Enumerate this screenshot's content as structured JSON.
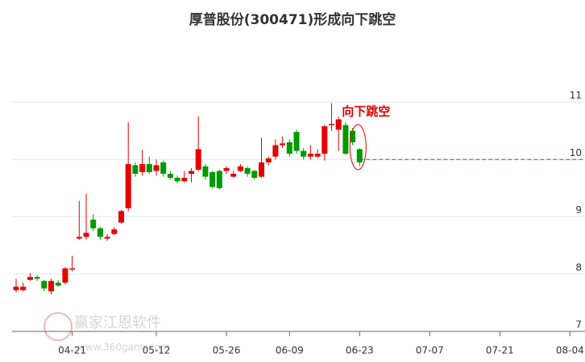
{
  "chart_data": {
    "type": "candlestick",
    "title": "厚普股份(300471)形成向下跳空",
    "annotation": "向下跳空",
    "watermark": [
      "赢家江恩软件",
      "www.360gann.com"
    ],
    "categories": [
      null,
      null,
      null,
      null,
      null,
      null,
      null,
      null,
      "04-21",
      null,
      null,
      null,
      null,
      null,
      null,
      null,
      null,
      null,
      null,
      null,
      "05-12",
      null,
      null,
      null,
      null,
      null,
      null,
      null,
      null,
      null,
      "05-26",
      null,
      null,
      null,
      null,
      null,
      null,
      null,
      null,
      "06-09",
      null,
      null,
      null,
      null,
      null,
      null,
      null,
      null,
      null,
      "06-23",
      null,
      null,
      null,
      null,
      null,
      null,
      null,
      null,
      null,
      "07-07",
      null,
      null,
      null,
      null,
      null,
      null,
      null,
      null,
      null,
      "07-21",
      null,
      null,
      null,
      null,
      null,
      null,
      null,
      null,
      null,
      "08-04"
    ],
    "open": [
      7.72,
      7.72,
      7.9,
      7.95,
      7.88,
      7.7,
      7.85,
      7.85,
      8.08,
      8.62,
      8.65,
      8.95,
      8.8,
      8.62,
      8.7,
      8.9,
      9.15,
      9.9,
      9.78,
      9.92,
      9.8,
      9.95,
      9.75,
      9.68,
      9.62,
      9.75,
      9.82,
      9.88,
      9.78,
      9.8,
      9.8,
      9.7,
      9.8,
      9.85,
      9.8,
      9.7,
      9.95,
      10.05,
      10.25,
      10.3,
      10.48,
      10.15,
      10.05,
      10.05,
      10.1,
      10.6,
      10.52,
      10.6,
      10.5,
      10.18,
      null,
      null,
      null,
      null,
      null,
      null,
      null,
      null,
      null,
      null,
      null,
      null,
      null,
      null,
      null,
      null,
      null,
      null,
      null,
      null,
      null,
      null,
      null,
      null,
      null,
      null,
      null,
      null,
      null,
      null
    ],
    "high": [
      7.92,
      7.85,
      8.02,
      7.98,
      7.9,
      7.92,
      7.9,
      8.12,
      8.32,
      9.28,
      9.4,
      9.05,
      8.82,
      8.7,
      8.82,
      9.12,
      10.65,
      9.95,
      10.17,
      10.05,
      10.0,
      9.98,
      9.8,
      9.72,
      9.8,
      9.85,
      10.75,
      9.92,
      9.8,
      9.82,
      9.88,
      9.8,
      9.92,
      9.88,
      9.82,
      10.38,
      10.05,
      10.35,
      10.4,
      10.35,
      10.52,
      10.2,
      10.25,
      10.18,
      10.6,
      10.98,
      10.75,
      10.65,
      10.55,
      10.2,
      null,
      null,
      null,
      null,
      null,
      null,
      null,
      null,
      null,
      null,
      null,
      null,
      null,
      null,
      null,
      null,
      null,
      null,
      null,
      null,
      null,
      null,
      null,
      null,
      null,
      null,
      null,
      null,
      null,
      null
    ],
    "low": [
      7.68,
      7.7,
      7.88,
      7.88,
      7.7,
      7.65,
      7.78,
      7.82,
      8.05,
      8.6,
      8.6,
      8.75,
      8.6,
      8.58,
      8.68,
      8.88,
      9.1,
      9.7,
      9.72,
      9.75,
      9.72,
      9.7,
      9.65,
      9.58,
      9.6,
      9.6,
      9.8,
      9.65,
      9.5,
      9.48,
      9.75,
      9.68,
      9.78,
      9.7,
      9.65,
      9.68,
      9.9,
      10.0,
      10.2,
      10.05,
      10.1,
      10.0,
      10.0,
      10.02,
      9.98,
      10.5,
      10.15,
      10.08,
      10.25,
      9.88,
      null,
      null,
      null,
      null,
      null,
      null,
      null,
      null,
      null,
      null,
      null,
      null,
      null,
      null,
      null,
      null,
      null,
      null,
      null,
      null,
      null,
      null,
      null,
      null,
      null,
      null,
      null,
      null,
      null,
      null
    ],
    "close": [
      7.78,
      7.78,
      7.95,
      7.92,
      7.75,
      7.88,
      7.8,
      8.1,
      8.1,
      8.65,
      8.72,
      8.8,
      8.65,
      8.65,
      8.78,
      9.1,
      9.92,
      9.75,
      9.92,
      9.78,
      9.9,
      9.75,
      9.68,
      9.62,
      9.68,
      9.8,
      10.18,
      9.7,
      9.52,
      9.5,
      9.85,
      9.75,
      9.88,
      9.75,
      9.68,
      9.95,
      10.02,
      10.25,
      10.28,
      10.1,
      10.15,
      10.05,
      10.1,
      10.1,
      10.58,
      10.62,
      10.7,
      10.1,
      10.3,
      9.95,
      null,
      null,
      null,
      null,
      null,
      null,
      null,
      null,
      null,
      null,
      null,
      null,
      null,
      null,
      null,
      null,
      null,
      null,
      null,
      null,
      null,
      null,
      null,
      null,
      null,
      null,
      null,
      null,
      null,
      null
    ],
    "up_color": "#e60000",
    "down_color": "#009900",
    "reference_line": 10,
    "reference_color": "#009900",
    "ylim": [
      7,
      11.8
    ],
    "yticks": [
      7,
      8,
      9,
      10,
      11
    ],
    "grid": true
  }
}
